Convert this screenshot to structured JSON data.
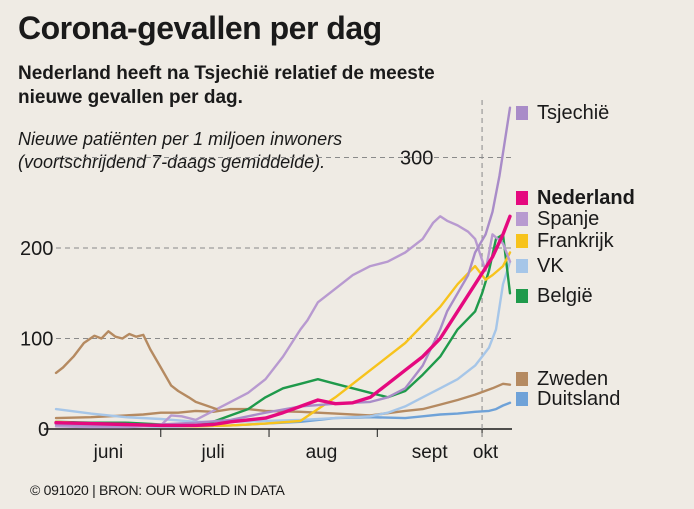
{
  "header": {
    "title": "Corona-gevallen per dag",
    "subtitle": "Nederland heeft na Tsjechië relatief de meeste nieuwe gevallen per dag.",
    "note": "Nieuwe patiënten per 1 miljoen inwoners (voortschrijdend 7-daags gemiddelde)."
  },
  "footer": {
    "credit": "© 091020 | BRON: OUR WORLD IN DATA"
  },
  "chart_data": {
    "type": "line",
    "title": "Corona-gevallen per dag",
    "xlabel": "",
    "ylabel": "Nieuwe patiënten per 1 miljoen inwoners",
    "x_range": [
      0,
      130
    ],
    "ylim": [
      0,
      350
    ],
    "yticks": [
      0,
      100,
      200,
      300
    ],
    "ytick_labels": [
      "0",
      "100",
      "200",
      "300"
    ],
    "xticks": [
      {
        "label": "juni",
        "x": 15
      },
      {
        "label": "juli",
        "x": 45
      },
      {
        "label": "aug",
        "x": 76
      },
      {
        "label": "sept",
        "x": 107
      },
      {
        "label": "okt",
        "x": 123
      }
    ],
    "x_boundary": 122,
    "legend_placement": "right of chart",
    "series": [
      {
        "name": "Duitsland",
        "color": "#6fa2d8",
        "bold": false,
        "x": [
          0,
          10,
          20,
          30,
          40,
          50,
          60,
          70,
          80,
          90,
          100,
          105,
          110,
          115,
          120,
          124,
          126,
          128,
          130
        ],
        "y": [
          5,
          4,
          3,
          3,
          3,
          4,
          6,
          8,
          12,
          13,
          12,
          14,
          16,
          17,
          19,
          20,
          22,
          26,
          29
        ]
      },
      {
        "name": "Zweden",
        "color": "#b58a61",
        "bold": false,
        "x": [
          0,
          10,
          20,
          25,
          30,
          35,
          40,
          45,
          50,
          55,
          60,
          70,
          80,
          90,
          100,
          105,
          110,
          115,
          120,
          125,
          128,
          130
        ],
        "y": [
          12,
          13,
          15,
          16,
          18,
          18,
          20,
          19,
          22,
          22,
          20,
          19,
          17,
          15,
          20,
          22,
          27,
          32,
          38,
          45,
          50,
          49
        ]
      },
      {
        "name": "VK",
        "color": "#a6c6e8",
        "bold": false,
        "x": [
          0,
          10,
          20,
          30,
          40,
          50,
          60,
          70,
          80,
          90,
          95,
          100,
          105,
          110,
          115,
          120,
          122,
          124,
          126,
          128,
          130
        ],
        "y": [
          22,
          17,
          13,
          11,
          8,
          8,
          9,
          10,
          12,
          14,
          18,
          25,
          35,
          45,
          55,
          70,
          80,
          90,
          110,
          160,
          185
        ]
      },
      {
        "name": "België",
        "color": "#1f9a4b",
        "bold": false,
        "x": [
          0,
          10,
          20,
          30,
          40,
          45,
          50,
          55,
          60,
          65,
          70,
          75,
          80,
          85,
          90,
          95,
          100,
          105,
          110,
          115,
          120,
          122,
          124,
          126,
          128,
          130
        ],
        "y": [
          8,
          7,
          7,
          5,
          4,
          8,
          15,
          22,
          35,
          45,
          50,
          55,
          50,
          45,
          40,
          35,
          42,
          60,
          80,
          110,
          130,
          150,
          175,
          210,
          215,
          150
        ]
      },
      {
        "name": "Frankrijk",
        "color": "#f7c31c",
        "bold": false,
        "x": [
          0,
          10,
          20,
          30,
          40,
          50,
          60,
          70,
          80,
          85,
          90,
          95,
          100,
          105,
          110,
          115,
          120,
          123,
          125,
          128,
          130
        ],
        "y": [
          8,
          6,
          5,
          4,
          3,
          4,
          6,
          9,
          35,
          50,
          65,
          80,
          95,
          115,
          135,
          160,
          180,
          165,
          170,
          180,
          195
        ]
      },
      {
        "name": "Spanje",
        "color": "#b89ad0",
        "bold": false,
        "x": [
          0,
          10,
          20,
          30,
          33,
          36,
          40,
          45,
          50,
          55,
          60,
          65,
          70,
          72,
          75,
          80,
          85,
          90,
          95,
          100,
          105,
          108,
          110,
          112,
          115,
          118,
          120,
          123,
          125,
          128,
          130
        ],
        "y": [
          3,
          2,
          2,
          4,
          15,
          14,
          10,
          20,
          30,
          40,
          55,
          80,
          110,
          120,
          140,
          155,
          170,
          180,
          185,
          195,
          210,
          228,
          235,
          230,
          225,
          218,
          210,
          175,
          215,
          205,
          185
        ]
      },
      {
        "name": "Tsjechië",
        "color": "#a98cc8",
        "bold": false,
        "x": [
          0,
          10,
          20,
          30,
          40,
          50,
          60,
          70,
          80,
          90,
          95,
          100,
          105,
          110,
          112,
          115,
          118,
          120,
          123,
          125,
          127,
          129,
          130
        ],
        "y": [
          5,
          4,
          4,
          5,
          7,
          10,
          18,
          25,
          28,
          30,
          35,
          45,
          70,
          110,
          130,
          150,
          170,
          195,
          215,
          240,
          280,
          330,
          355
        ]
      },
      {
        "name": "Nederland",
        "color": "#e5097f",
        "bold": true,
        "x": [
          0,
          10,
          20,
          30,
          40,
          45,
          50,
          55,
          60,
          65,
          70,
          75,
          80,
          85,
          90,
          95,
          100,
          105,
          110,
          115,
          120,
          125,
          128,
          130
        ],
        "y": [
          7,
          6,
          5,
          4,
          4,
          5,
          8,
          10,
          12,
          18,
          25,
          32,
          28,
          29,
          35,
          50,
          65,
          80,
          100,
          130,
          160,
          190,
          215,
          235
        ]
      },
      {
        "name": "Zweden-jun",
        "color": "#b58a61",
        "bold": false,
        "hidden_label": true,
        "x": [
          0,
          2,
          5,
          8,
          11,
          13,
          15,
          17,
          19,
          21,
          23,
          25,
          27,
          30,
          33,
          35,
          38,
          40,
          43,
          46
        ],
        "y": [
          62,
          68,
          80,
          95,
          103,
          100,
          108,
          102,
          100,
          105,
          102,
          104,
          88,
          68,
          48,
          42,
          35,
          30,
          26,
          22
        ]
      },
      {
        "name": "VK-jun",
        "color": "#a6c6e8",
        "bold": false,
        "hidden_label": true,
        "x": [
          0,
          0
        ],
        "y": [
          22,
          22
        ]
      }
    ],
    "legend": [
      {
        "label": "Tsjechië",
        "color": "#a98cc8",
        "bold": false
      },
      {
        "label": "Nederland",
        "color": "#e5097f",
        "bold": true
      },
      {
        "label": "Spanje",
        "color": "#b89ad0",
        "bold": false
      },
      {
        "label": "Frankrijk",
        "color": "#f7c31c",
        "bold": false
      },
      {
        "label": "VK",
        "color": "#a6c6e8",
        "bold": false
      },
      {
        "label": "België",
        "color": "#1f9a4b",
        "bold": false
      },
      {
        "label": "Zweden",
        "color": "#b58a61",
        "bold": false
      },
      {
        "label": "Duitsland",
        "color": "#6fa2d8",
        "bold": false
      }
    ]
  }
}
